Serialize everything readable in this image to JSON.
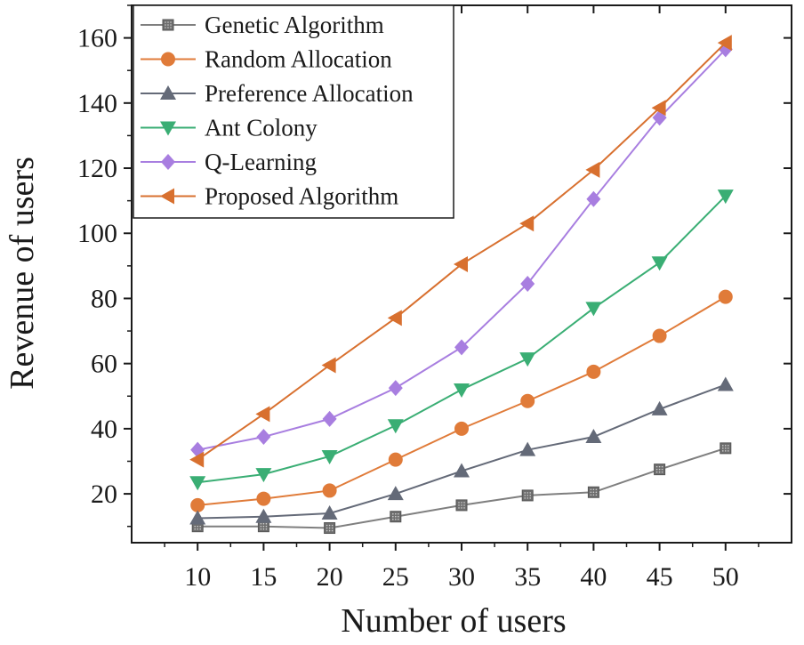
{
  "chart_data": {
    "type": "line",
    "title": "",
    "xlabel": "Number of users",
    "ylabel": "Revenue of users",
    "x": [
      10,
      15,
      20,
      25,
      30,
      35,
      40,
      45,
      50
    ],
    "xlim": [
      5,
      55
    ],
    "ylim": [
      5,
      170
    ],
    "xticks": [
      10,
      15,
      20,
      25,
      30,
      35,
      40,
      45,
      50
    ],
    "yticks": [
      20,
      40,
      60,
      80,
      100,
      120,
      140,
      160
    ],
    "grid": false,
    "legend_position": "top-left",
    "series": [
      {
        "name": "Genetic Algorithm",
        "color": "#7f7f7f",
        "marker": "square-dotted",
        "values": [
          10,
          10,
          9.5,
          13,
          16.5,
          19.5,
          20.5,
          27.5,
          34
        ]
      },
      {
        "name": "Random Allocation",
        "color": "#e07b39",
        "marker": "circle",
        "values": [
          16.5,
          18.5,
          21,
          30.5,
          40,
          48.5,
          57.5,
          68.5,
          80.5
        ]
      },
      {
        "name": "Preference Allocation",
        "color": "#646a78",
        "marker": "triangle-up",
        "values": [
          12.5,
          13,
          14,
          20,
          27,
          33.5,
          37.5,
          46,
          53.5
        ]
      },
      {
        "name": "Ant Colony",
        "color": "#3aae74",
        "marker": "triangle-down",
        "values": [
          23.5,
          26,
          31.5,
          41,
          52,
          61.5,
          77,
          91,
          111.5
        ]
      },
      {
        "name": "Q-Learning",
        "color": "#a87ee0",
        "marker": "diamond",
        "values": [
          33.5,
          37.5,
          43,
          52.5,
          65,
          84.5,
          110.5,
          135.5,
          156.5
        ]
      },
      {
        "name": "Proposed Algorithm",
        "color": "#d8702f",
        "marker": "triangle-left",
        "values": [
          30.5,
          44.5,
          59.5,
          74,
          90.5,
          103,
          119.5,
          138.5,
          158.5
        ]
      }
    ]
  }
}
